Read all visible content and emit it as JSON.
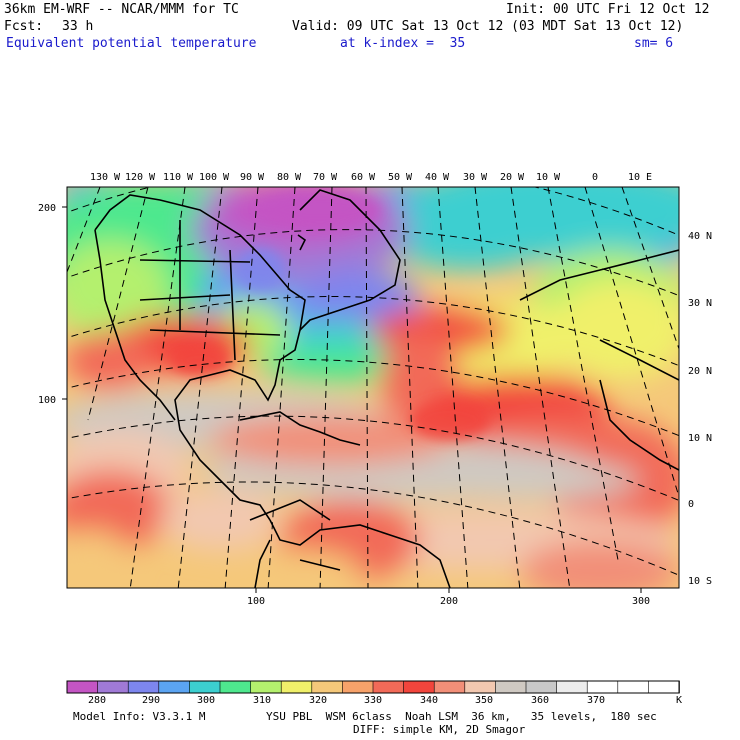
{
  "header": {
    "model": "36km EM-WRF -- NCAR/MMM for TC",
    "init": "Init: 00 UTC Fri 12 Oct 12",
    "fcst_label": "Fcst:",
    "fcst_value": "33 h",
    "valid": "Valid: 09 UTC Sat 13 Oct 12 (03 MDT Sat 13 Oct 12)",
    "field": "Equivalent potential temperature",
    "level": "at k-index =  35",
    "smooth": "sm= 6"
  },
  "map": {
    "top_lon_labels": [
      "130 W",
      "120 W",
      "110 W",
      "100 W",
      "90 W",
      "80 W",
      "70 W",
      "60 W",
      "50 W",
      "40 W",
      "30 W",
      "20 W",
      "10 W",
      "0",
      "10 E"
    ],
    "right_lat_labels": [
      "40 N",
      "30 N",
      "20 N",
      "10 N",
      "0",
      "10 S"
    ],
    "left_y_ticks": [
      "200",
      "100"
    ],
    "bottom_x_ticks": [
      "100",
      "200",
      "300"
    ]
  },
  "colorbar": {
    "labels": [
      "280",
      "290",
      "300",
      "310",
      "320",
      "330",
      "340",
      "350",
      "360",
      "370"
    ],
    "unit": "K",
    "colors": [
      "#c455c4",
      "#a07ad6",
      "#7d86ee",
      "#5ba4f2",
      "#3ccfd0",
      "#4ee88e",
      "#b4f06e",
      "#f0f06a",
      "#f5c87a",
      "#f7a26a",
      "#f26a58",
      "#f2453c",
      "#f28f78",
      "#f2c8b0",
      "#cfc9c2",
      "#c8c8c8",
      "#ececec",
      "#ffffff",
      "#ffffff",
      "#ffffff"
    ]
  },
  "footer": {
    "line1_left": "Model Info: V3.3.1 M",
    "line1_right": "YSU PBL  WSM 6class  Noah LSM  36 km,   35 levels,  180 sec",
    "line2": "DIFF: simple KM, 2D Smagor"
  }
}
